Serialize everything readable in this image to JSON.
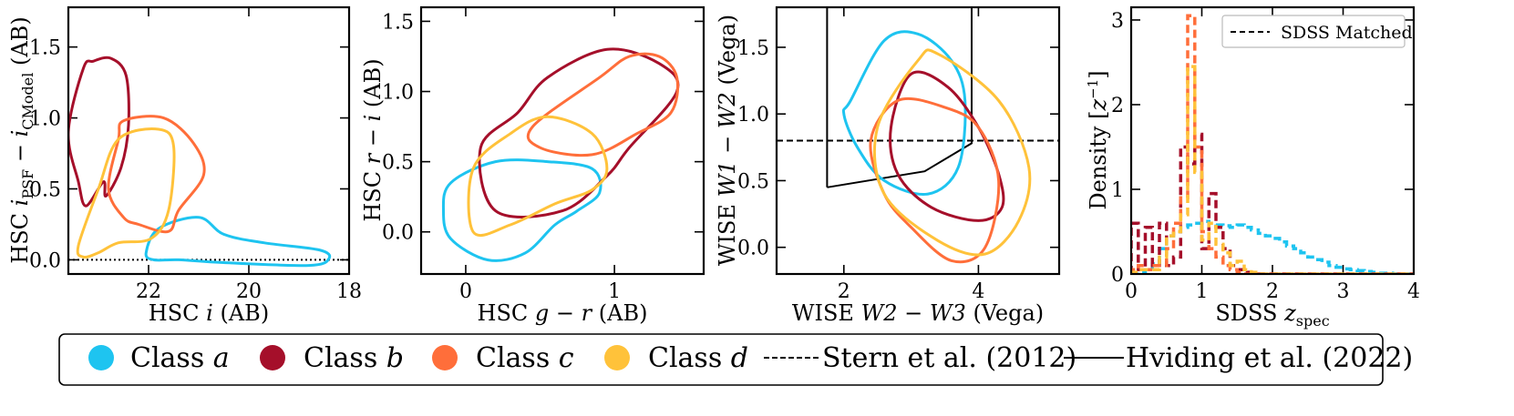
{
  "colors": {
    "class_a": "#1ec4f0",
    "class_b": "#a50f2a",
    "class_c": "#ff6e3a",
    "class_d": "#ffc23a"
  },
  "legend": {
    "class_a": "Class a",
    "class_b": "Class b",
    "class_c": "Class c",
    "class_d": "Class d",
    "stern": "Stern et al. (2012)",
    "hviding": "Hviding et al. (2022)"
  },
  "chart_data": [
    {
      "type": "contour",
      "id": "panel1",
      "xlabel": "HSC i (AB)",
      "ylabel": "HSC i_PSF − i_CModel (AB)",
      "xlim": [
        23.6,
        18.0
      ],
      "ylim": [
        -0.1,
        1.78
      ],
      "xticks": [
        "22",
        "20",
        "18"
      ],
      "yticks": [
        "0.0",
        "0.5",
        "1.0",
        "1.5"
      ],
      "reference_lines": [
        {
          "style": "dotted",
          "y": 0.0
        }
      ],
      "series": [
        {
          "name": "Class a",
          "x": [
            22.05,
            21.8,
            21.0,
            20.5,
            19.7,
            18.6,
            18.4,
            18.8,
            20.5,
            21.4,
            21.9,
            22.05
          ],
          "y": [
            0.05,
            0.22,
            0.3,
            0.18,
            0.12,
            0.07,
            0.01,
            -0.04,
            -0.02,
            0.0,
            0.0,
            0.05
          ]
        },
        {
          "name": "Class b",
          "x": [
            23.6,
            23.3,
            23.1,
            22.75,
            22.45,
            22.4,
            22.55,
            22.85,
            22.9,
            23.25,
            23.4,
            23.6
          ],
          "y": [
            0.9,
            1.35,
            1.4,
            1.42,
            1.3,
            0.95,
            0.65,
            0.45,
            0.55,
            0.38,
            0.55,
            0.9
          ]
        },
        {
          "name": "Class c",
          "x": [
            22.8,
            22.6,
            22.5,
            21.7,
            21.1,
            20.9,
            21.4,
            21.6,
            22.2,
            22.5,
            22.8
          ],
          "y": [
            0.5,
            0.85,
            0.98,
            1.0,
            0.82,
            0.6,
            0.35,
            0.2,
            0.25,
            0.3,
            0.5
          ]
        },
        {
          "name": "Class d",
          "x": [
            23.4,
            23.0,
            22.6,
            21.8,
            21.5,
            21.6,
            21.95,
            22.6,
            23.0,
            23.3,
            23.4
          ],
          "y": [
            0.1,
            0.5,
            0.85,
            0.92,
            0.8,
            0.35,
            0.15,
            0.12,
            0.05,
            0.02,
            0.1
          ]
        }
      ]
    },
    {
      "type": "contour",
      "id": "panel2",
      "xlabel": "HSC g − r (AB)",
      "ylabel": "HSC r − i (AB)",
      "xlim": [
        -0.3,
        1.6
      ],
      "ylim": [
        -0.3,
        1.6
      ],
      "xticks": [
        "0",
        "1"
      ],
      "yticks": [
        "0.0",
        "0.5",
        "1.0",
        "1.5"
      ],
      "series": [
        {
          "name": "Class a",
          "x": [
            -0.1,
            0.2,
            0.55,
            0.85,
            0.9,
            0.75,
            0.6,
            0.4,
            0.15,
            -0.1,
            -0.15,
            -0.1
          ],
          "y": [
            0.35,
            0.5,
            0.5,
            0.45,
            0.28,
            0.15,
            0.05,
            -0.15,
            -0.2,
            -0.05,
            0.15,
            0.35
          ]
        },
        {
          "name": "Class b",
          "x": [
            0.1,
            0.35,
            0.55,
            0.95,
            1.3,
            1.42,
            1.1,
            0.95,
            0.65,
            0.2,
            0.1
          ],
          "y": [
            0.6,
            0.85,
            1.1,
            1.3,
            1.2,
            1.0,
            0.6,
            0.4,
            0.15,
            0.15,
            0.6
          ]
        },
        {
          "name": "Class c",
          "x": [
            0.45,
            0.9,
            1.1,
            1.3,
            1.42,
            1.38,
            1.15,
            0.85,
            0.5,
            0.45
          ],
          "y": [
            0.75,
            1.1,
            1.25,
            1.25,
            1.1,
            0.85,
            0.7,
            0.55,
            0.6,
            0.75
          ]
        },
        {
          "name": "Class d",
          "x": [
            0.05,
            0.3,
            0.55,
            0.85,
            0.95,
            0.85,
            0.6,
            0.3,
            0.05,
            0.05
          ],
          "y": [
            0.45,
            0.7,
            0.82,
            0.7,
            0.45,
            0.3,
            0.2,
            0.05,
            0.0,
            0.45
          ]
        }
      ]
    },
    {
      "type": "contour",
      "id": "panel3",
      "xlabel": "WISE W2 − W3 (Vega)",
      "ylabel": "WISE W1 − W2 (Vega)",
      "xlim": [
        1.0,
        5.2
      ],
      "ylim": [
        -0.2,
        1.8
      ],
      "xticks": [
        "2",
        "4"
      ],
      "yticks": [
        "0.0",
        "0.5",
        "1.0",
        "1.5"
      ],
      "reference_lines": [
        {
          "style": "dashed",
          "y": 0.8
        },
        {
          "style": "solid",
          "points": [
            [
              1.75,
              0.45
            ],
            [
              3.2,
              0.57
            ],
            [
              3.9,
              0.78
            ],
            [
              3.9,
              1.8
            ]
          ]
        },
        {
          "style": "solid",
          "points": [
            [
              1.75,
              0.45
            ],
            [
              1.75,
              1.8
            ]
          ]
        }
      ],
      "series": [
        {
          "name": "Class a",
          "x": [
            2.1,
            2.6,
            3.1,
            3.6,
            3.8,
            3.7,
            3.25,
            2.6,
            2.2,
            2.0,
            2.1
          ],
          "y": [
            1.1,
            1.55,
            1.6,
            1.4,
            1.1,
            0.6,
            0.4,
            0.5,
            0.75,
            1.0,
            1.1
          ]
        },
        {
          "name": "Class b",
          "x": [
            2.7,
            3.0,
            3.55,
            4.0,
            4.3,
            4.35,
            4.0,
            3.3,
            2.8,
            2.7
          ],
          "y": [
            0.9,
            1.3,
            1.2,
            0.9,
            0.55,
            0.3,
            0.2,
            0.3,
            0.55,
            0.9
          ]
        },
        {
          "name": "Class c",
          "x": [
            2.4,
            2.8,
            3.5,
            4.0,
            4.3,
            4.1,
            3.6,
            3.0,
            2.6,
            2.4
          ],
          "y": [
            0.8,
            1.1,
            1.05,
            0.9,
            0.5,
            0.0,
            -0.1,
            0.15,
            0.4,
            0.8
          ]
        },
        {
          "name": "Class d",
          "x": [
            2.5,
            3.1,
            3.4,
            4.3,
            4.75,
            4.6,
            4.1,
            3.4,
            2.6,
            2.5
          ],
          "y": [
            0.9,
            1.4,
            1.45,
            1.1,
            0.6,
            0.2,
            -0.05,
            0.05,
            0.4,
            0.9
          ]
        }
      ]
    },
    {
      "type": "histogram",
      "id": "panel4",
      "xlabel": "SDSS z_spec",
      "ylabel": "Density [z^-1]",
      "xlim": [
        0,
        4
      ],
      "ylim": [
        0,
        3.15
      ],
      "xticks": [
        "0",
        "1",
        "2",
        "3",
        "4"
      ],
      "yticks": [
        "0",
        "1",
        "2",
        "3"
      ],
      "legend": "SDSS Matched",
      "bin_width": 0.1,
      "series": [
        {
          "name": "Class a",
          "values": [
            0.0,
            0.02,
            0.05,
            0.12,
            0.3,
            0.45,
            0.5,
            0.55,
            0.58,
            0.6,
            0.62,
            0.6,
            0.58,
            0.57,
            0.55,
            0.58,
            0.55,
            0.52,
            0.48,
            0.45,
            0.42,
            0.38,
            0.33,
            0.3,
            0.25,
            0.2,
            0.17,
            0.14,
            0.1,
            0.08,
            0.06,
            0.05,
            0.04,
            0.03,
            0.02,
            0.01,
            0.01,
            0.0,
            0.0,
            0.0
          ]
        },
        {
          "name": "Class b",
          "values": [
            0.6,
            0.05,
            0.55,
            0.1,
            0.6,
            0.1,
            0.2,
            1.5,
            1.3,
            1.65,
            0.3,
            0.95,
            0.55,
            0.3,
            0.1,
            0.05,
            0.02,
            0.0,
            0.0,
            0.0,
            0.0,
            0.0,
            0.0,
            0.0,
            0.0,
            0.0,
            0.0,
            0.0,
            0.0,
            0.0,
            0.0,
            0.0,
            0.0,
            0.0,
            0.0,
            0.0,
            0.0,
            0.0,
            0.0,
            0.0
          ]
        },
        {
          "name": "Class c",
          "values": [
            0.05,
            0.1,
            0.05,
            0.1,
            0.1,
            0.3,
            0.6,
            0.9,
            3.05,
            1.5,
            0.5,
            0.3,
            0.2,
            0.1,
            0.05,
            0.02,
            0.0,
            0.0,
            0.0,
            0.0,
            0.0,
            0.0,
            0.0,
            0.0,
            0.0,
            0.0,
            0.0,
            0.0,
            0.0,
            0.0,
            0.0,
            0.0,
            0.0,
            0.0,
            0.0,
            0.0,
            0.0,
            0.0,
            0.0,
            0.0
          ]
        },
        {
          "name": "Class d",
          "values": [
            0.02,
            0.05,
            0.05,
            0.05,
            0.2,
            0.45,
            0.5,
            0.7,
            2.45,
            1.2,
            0.4,
            0.6,
            0.35,
            0.25,
            0.1,
            0.15,
            0.05,
            0.02,
            0.0,
            0.0,
            0.0,
            0.0,
            0.0,
            0.0,
            0.0,
            0.0,
            0.0,
            0.0,
            0.0,
            0.0,
            0.0,
            0.0,
            0.0,
            0.0,
            0.0,
            0.0,
            0.0,
            0.0,
            0.0,
            0.0
          ]
        }
      ]
    }
  ]
}
